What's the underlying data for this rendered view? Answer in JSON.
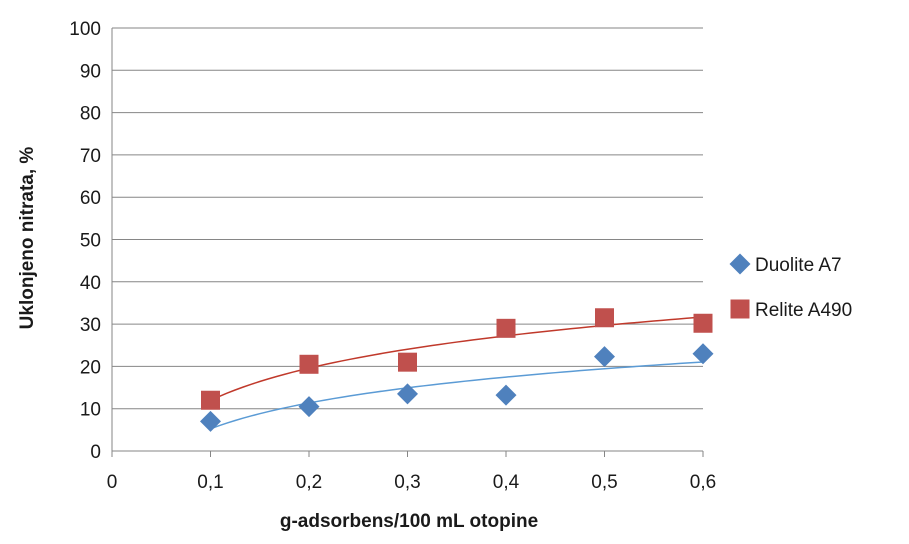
{
  "chart_data": {
    "type": "scatter",
    "xlabel": "g-adsorbens/100 mL otopine",
    "ylabel": "Uklonjeno nitrata, %",
    "xlim": [
      0,
      0.6
    ],
    "ylim": [
      0,
      100
    ],
    "x_ticks": [
      "0",
      "0,1",
      "0,2",
      "0,3",
      "0,4",
      "0,5",
      "0,6"
    ],
    "y_ticks": [
      "0",
      "10",
      "20",
      "30",
      "40",
      "50",
      "60",
      "70",
      "80",
      "90",
      "100"
    ],
    "grid": "horizontal",
    "legend_position": "right",
    "trendline": "logarithmic",
    "series": [
      {
        "name": "Duolite A7",
        "marker": "diamond",
        "color": "#4f81bd",
        "line_color": "#5b9bd5",
        "x": [
          0.1,
          0.2,
          0.3,
          0.4,
          0.5,
          0.6
        ],
        "y": [
          7,
          10.5,
          13.5,
          13.2,
          22.3,
          23
        ]
      },
      {
        "name": "Relite A490",
        "marker": "square",
        "color": "#c0504d",
        "line_color": "#c0392b",
        "x": [
          0.1,
          0.2,
          0.3,
          0.4,
          0.5,
          0.6
        ],
        "y": [
          12,
          20.5,
          21,
          29,
          31.5,
          30.2
        ]
      }
    ]
  }
}
